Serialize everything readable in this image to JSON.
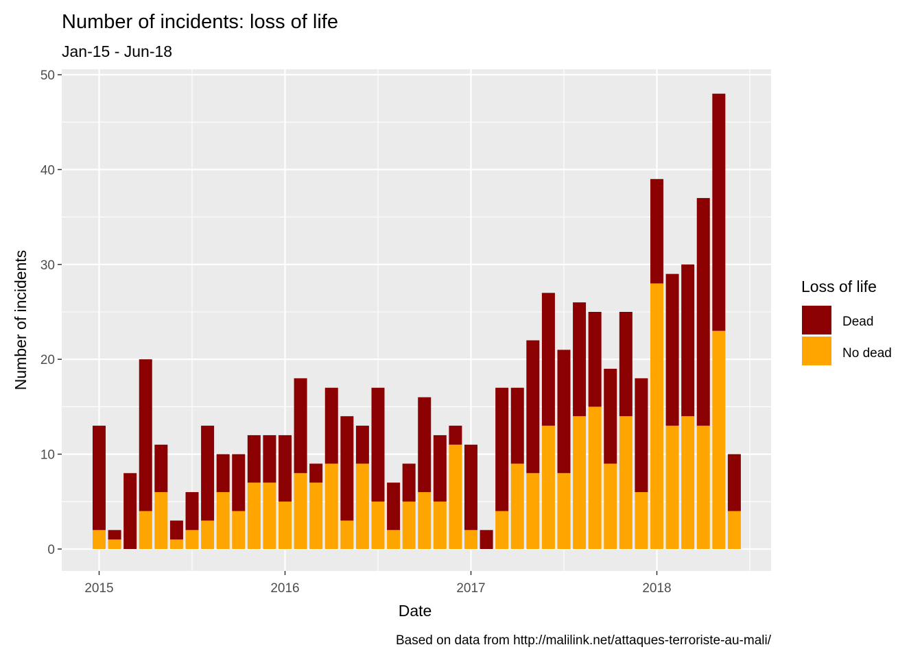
{
  "chart_data": {
    "type": "bar",
    "stacked": true,
    "title": "Number of incidents: loss of life",
    "subtitle": "Jan-15 - Jun-18",
    "xlabel": "Date",
    "ylabel": "Number of incidents",
    "caption": "Based on data from http://malilink.net/attaques-terroriste-au-mali/",
    "ylim": [
      0,
      50
    ],
    "yticks": [
      0,
      10,
      20,
      30,
      40,
      50
    ],
    "xticks": [
      "2015",
      "2016",
      "2017",
      "2018"
    ],
    "grid": true,
    "legend": {
      "title": "Loss of life",
      "position": "right",
      "entries": [
        {
          "name": "Dead",
          "color": "#8B0000"
        },
        {
          "name": "No dead",
          "color": "#FFA500"
        }
      ]
    },
    "categories": [
      "2015-01",
      "2015-02",
      "2015-03",
      "2015-04",
      "2015-05",
      "2015-06",
      "2015-07",
      "2015-08",
      "2015-09",
      "2015-10",
      "2015-11",
      "2015-12",
      "2016-01",
      "2016-02",
      "2016-03",
      "2016-04",
      "2016-05",
      "2016-06",
      "2016-07",
      "2016-08",
      "2016-09",
      "2016-10",
      "2016-11",
      "2016-12",
      "2017-01",
      "2017-02",
      "2017-03",
      "2017-04",
      "2017-05",
      "2017-06",
      "2017-07",
      "2017-08",
      "2017-09",
      "2017-10",
      "2017-11",
      "2017-12",
      "2018-01",
      "2018-02",
      "2018-03",
      "2018-04",
      "2018-05",
      "2018-06"
    ],
    "series": [
      {
        "name": "No dead",
        "color": "#FFA500",
        "values": [
          2,
          1,
          0,
          4,
          6,
          1,
          2,
          3,
          6,
          4,
          7,
          7,
          5,
          8,
          7,
          9,
          3,
          9,
          5,
          2,
          5,
          6,
          5,
          11,
          2,
          0,
          4,
          9,
          8,
          13,
          8,
          14,
          15,
          9,
          14,
          6,
          28,
          13,
          14,
          13,
          23,
          4
        ]
      },
      {
        "name": "Dead",
        "color": "#8B0000",
        "values": [
          11,
          1,
          8,
          16,
          5,
          2,
          4,
          10,
          4,
          6,
          5,
          5,
          7,
          10,
          2,
          8,
          11,
          4,
          12,
          5,
          4,
          10,
          7,
          2,
          9,
          2,
          13,
          8,
          14,
          14,
          13,
          12,
          10,
          10,
          11,
          12,
          11,
          16,
          16,
          24,
          25,
          6
        ]
      }
    ]
  }
}
